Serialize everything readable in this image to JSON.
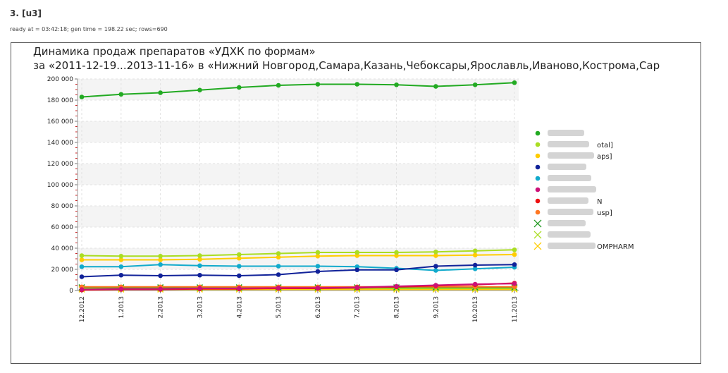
{
  "report": {
    "heading": "3. [u3]",
    "status": "ready at = 03:42:18; gen time = 198.22 sec; rows=690"
  },
  "chart_data": {
    "type": "line",
    "title": "Динамика продаж препаратов «УДХК по формам»",
    "subtitle": "за «2011-12-19...2013-11-16» в «Нижний Новгород,Самара,Казань,Чебоксары,Ярославль,Иваново,Кострома,Сар",
    "xlabel": "",
    "ylabel": "",
    "categories": [
      "12.2012",
      "1.2013",
      "2.2013",
      "3.2013",
      "4.2013",
      "5.2013",
      "6.2013",
      "7.2013",
      "8.2013",
      "9.2013",
      "10.2013",
      "11.2013"
    ],
    "y_ticks": [
      "0",
      "20 000",
      "40 000",
      "60 000",
      "80 000",
      "100 000",
      "120 000",
      "140 000",
      "160 000",
      "180 000",
      "200 000"
    ],
    "ylim": [
      0,
      200000
    ],
    "grid": true,
    "legend_position": "right",
    "series": [
      {
        "color": "#22aa22",
        "marker": "circle",
        "label_visible": "",
        "values": [
          183000,
          185500,
          187000,
          189500,
          192000,
          194000,
          195000,
          195000,
          194500,
          193000,
          194500,
          196500
        ]
      },
      {
        "color": "#aadd22",
        "marker": "circle",
        "label_visible": "otal]",
        "values": [
          33000,
          32500,
          32500,
          33000,
          34000,
          35000,
          36000,
          36000,
          36000,
          36500,
          37500,
          38500
        ]
      },
      {
        "color": "#ffcc00",
        "marker": "circle",
        "label_visible": "aps]",
        "values": [
          29000,
          29000,
          29000,
          29500,
          30500,
          31500,
          32500,
          33000,
          33000,
          33000,
          33500,
          34000
        ]
      },
      {
        "color": "#112299",
        "marker": "circle",
        "label_visible": "",
        "values": [
          13000,
          14500,
          14000,
          14500,
          14000,
          15000,
          18000,
          19500,
          19500,
          23000,
          24000,
          24500
        ]
      },
      {
        "color": "#11aacc",
        "marker": "circle",
        "label_visible": "",
        "values": [
          22500,
          22500,
          24500,
          23500,
          23000,
          23000,
          23000,
          22500,
          21000,
          19000,
          20500,
          22000
        ]
      },
      {
        "color": "#cc1177",
        "marker": "circle",
        "label_visible": "",
        "values": [
          1000,
          1500,
          1500,
          2000,
          2000,
          2500,
          2500,
          3000,
          4000,
          5000,
          6000,
          6500
        ]
      },
      {
        "color": "#ee1111",
        "marker": "circle",
        "label_visible": "N",
        "values": [
          500,
          1000,
          1000,
          1500,
          1500,
          2000,
          2000,
          2500,
          3500,
          4500,
          5500,
          7000
        ]
      },
      {
        "color": "#ff7722",
        "marker": "circle",
        "label_visible": "usp]",
        "values": [
          3500,
          3500,
          3500,
          3500,
          3500,
          3500,
          3500,
          3500,
          3500,
          3500,
          3500,
          3500
        ]
      },
      {
        "color": "#229922",
        "marker": "cross",
        "label_visible": "",
        "values": [
          3000,
          3000,
          3000,
          3000,
          3000,
          3000,
          3000,
          3000,
          3000,
          3000,
          3000,
          3000
        ]
      },
      {
        "color": "#aadd22",
        "marker": "cross",
        "label_visible": "",
        "values": [
          2000,
          2000,
          2000,
          2000,
          2000,
          2000,
          2000,
          2000,
          2000,
          2000,
          2000,
          2000
        ]
      },
      {
        "color": "#ffcc00",
        "marker": "cross",
        "label_visible": "OMPHARM",
        "values": [
          1000,
          1000,
          1000,
          1000,
          1000,
          1000,
          1000,
          1000,
          1000,
          1000,
          1000,
          1000
        ]
      }
    ]
  }
}
